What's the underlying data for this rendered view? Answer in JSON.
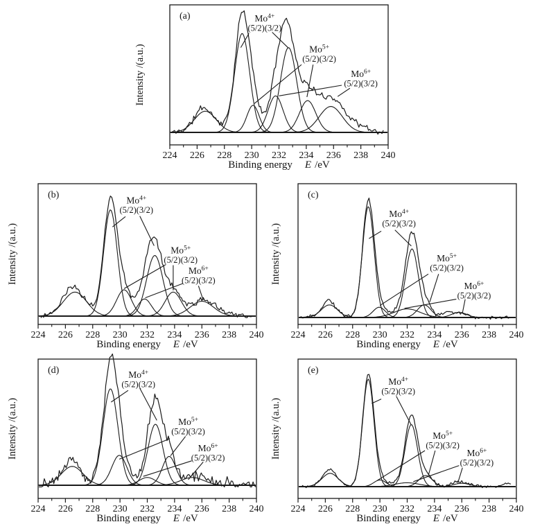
{
  "figure": {
    "background": "#ffffff",
    "line_color": "#1a1a1a",
    "ylabel": "Intensity /(a.u.)",
    "xlabel": {
      "text": "Binding energy",
      "symbol": "E",
      "unit": "/eV"
    }
  },
  "chart_data": [
    {
      "id": "a",
      "panel_label": "(a)",
      "type": "line",
      "title": "Mo 3d XPS spectrum (a)",
      "xlabel": "Binding energy E /eV",
      "ylabel": "Intensity /(a.u.)",
      "xlim": [
        224,
        240
      ],
      "ylim": [
        0,
        1.1
      ],
      "x_ticks": [
        224,
        226,
        228,
        230,
        232,
        234,
        236,
        238,
        240
      ],
      "peaks": [
        {
          "assignment": "unlabeled",
          "center": 226.6,
          "height": 0.18,
          "sigma": 0.8
        },
        {
          "assignment": "Mo4+ 3d5/2",
          "center": 229.3,
          "height": 0.84,
          "sigma": 0.55
        },
        {
          "assignment": "Mo5+ 3d5/2",
          "center": 230.1,
          "height": 0.23,
          "sigma": 0.45
        },
        {
          "assignment": "Mo6+ 3d5/2",
          "center": 231.75,
          "height": 0.31,
          "sigma": 0.55
        },
        {
          "assignment": "Mo4+ 3d3/2",
          "center": 232.7,
          "height": 0.72,
          "sigma": 0.6
        },
        {
          "assignment": "Mo5+ 3d3/2",
          "center": 234.1,
          "height": 0.27,
          "sigma": 0.6
        },
        {
          "assignment": "Mo6+ 3d3/2",
          "center": 235.8,
          "height": 0.22,
          "sigma": 0.85
        }
      ],
      "experimental": {
        "seed": 11,
        "noise": 0.02,
        "x_start": 224.15,
        "x_end": 239.65,
        "extra": [
          {
            "center": 229.25,
            "height": 0.14,
            "sigma": 0.35
          },
          {
            "center": 232.35,
            "height": 0.15,
            "sigma": 0.45
          },
          {
            "center": 235.1,
            "height": 0.08,
            "sigma": 1.2
          },
          {
            "center": 226.3,
            "height": 0.04,
            "sigma": 0.35
          },
          {
            "center": 237.4,
            "height": 0.06,
            "sigma": 0.9
          }
        ]
      },
      "annotations": [
        {
          "element": "Mo",
          "charge": "4+",
          "orbitals": "(5/2)(3/2)",
          "x": 230.95,
          "y": 0.94,
          "lines": [
            [
              229.8,
              0.84,
              229.2,
              0.72
            ],
            [
              231.5,
              0.85,
              232.7,
              0.715
            ]
          ]
        },
        {
          "element": "Mo",
          "charge": "5+",
          "orbitals": "(5/2)(3/2)",
          "x": 234.95,
          "y": 0.68,
          "lines": [
            [
              233.65,
              0.575,
              230.2,
              0.245
            ],
            [
              234.5,
              0.575,
              234.05,
              0.3
            ]
          ]
        },
        {
          "element": "Mo",
          "charge": "6+",
          "orbitals": "(5/2)(3/2)",
          "x": 238.0,
          "y": 0.47,
          "lines": [
            [
              236.6,
              0.4,
              232.0,
              0.31
            ],
            [
              237.2,
              0.375,
              236.3,
              0.305
            ]
          ]
        }
      ]
    },
    {
      "id": "b",
      "panel_label": "(b)",
      "type": "line",
      "title": "Mo 3d XPS spectrum (b)",
      "xlabel": "Binding energy E /eV",
      "ylabel": "Intensity /(a.u.)",
      "xlim": [
        224,
        240
      ],
      "ylim": [
        0,
        1.1
      ],
      "x_ticks": [
        224,
        226,
        228,
        230,
        232,
        234,
        236,
        238,
        240
      ],
      "peaks": [
        {
          "assignment": "unlabeled",
          "center": 226.7,
          "height": 0.21,
          "sigma": 0.85
        },
        {
          "assignment": "Mo4+ 3d5/2",
          "center": 229.3,
          "height": 0.93,
          "sigma": 0.5
        },
        {
          "assignment": "Mo5+ 3d5/2",
          "center": 230.3,
          "height": 0.23,
          "sigma": 0.55
        },
        {
          "assignment": "Mo6+ 3d5/2",
          "center": 231.8,
          "height": 0.15,
          "sigma": 0.5
        },
        {
          "assignment": "Mo4+ 3d3/2",
          "center": 232.55,
          "height": 0.53,
          "sigma": 0.6
        },
        {
          "assignment": "Mo5+ 3d3/2",
          "center": 233.9,
          "height": 0.21,
          "sigma": 0.6
        },
        {
          "assignment": "Mo6+ 3d3/2",
          "center": 236.0,
          "height": 0.13,
          "sigma": 0.85
        }
      ],
      "experimental": {
        "seed": 23,
        "noise": 0.02,
        "x_start": 224.2,
        "x_end": 239.7,
        "extra": [
          {
            "center": 229.3,
            "height": 0.06,
            "sigma": 0.4
          },
          {
            "center": 232.45,
            "height": 0.09,
            "sigma": 0.5
          },
          {
            "center": 226.4,
            "height": 0.05,
            "sigma": 0.5
          },
          {
            "center": 237.4,
            "height": 0.03,
            "sigma": 0.9
          }
        ]
      },
      "annotations": [
        {
          "element": "Mo",
          "charge": "4+",
          "orbitals": "(5/2)(3/2)",
          "x": 231.2,
          "y": 0.985,
          "lines": [
            [
              230.4,
              0.87,
              229.45,
              0.78
            ],
            [
              231.45,
              0.875,
              232.5,
              0.615
            ]
          ]
        },
        {
          "element": "Mo",
          "charge": "5+",
          "orbitals": "(5/2)(3/2)",
          "x": 234.45,
          "y": 0.55,
          "lines": [
            [
              233.35,
              0.45,
              230.3,
              0.24
            ],
            [
              233.9,
              0.445,
              233.9,
              0.225
            ]
          ]
        },
        {
          "element": "Mo",
          "charge": "6+",
          "orbitals": "(5/2)(3/2)",
          "x": 235.75,
          "y": 0.37,
          "lines": [
            [
              234.6,
              0.285,
              231.85,
              0.16
            ],
            [
              235.75,
              0.265,
              236.1,
              0.14
            ]
          ]
        }
      ]
    },
    {
      "id": "c",
      "panel_label": "(c)",
      "type": "line",
      "title": "Mo 3d XPS spectrum (c)",
      "xlabel": "Binding energy E /eV",
      "ylabel": "Intensity /(a.u.)",
      "xlim": [
        224,
        240
      ],
      "ylim": [
        0,
        1.1
      ],
      "x_ticks": [
        224,
        226,
        228,
        230,
        232,
        234,
        236,
        238,
        240
      ],
      "peaks": [
        {
          "assignment": "unlabeled",
          "center": 226.3,
          "height": 0.11,
          "sigma": 0.6
        },
        {
          "assignment": "Mo4+ 3d5/2",
          "center": 229.15,
          "height": 0.97,
          "sigma": 0.43
        },
        {
          "assignment": "Mo5+ 3d5/2",
          "center": 229.95,
          "height": 0.09,
          "sigma": 0.45
        },
        {
          "assignment": "Mo6+ 3d5/2",
          "center": 232.0,
          "height": 0.075,
          "sigma": 0.95
        },
        {
          "assignment": "Mo4+ 3d3/2",
          "center": 232.35,
          "height": 0.6,
          "sigma": 0.47
        },
        {
          "assignment": "Mo5+ 3d3/2",
          "center": 233.25,
          "height": 0.11,
          "sigma": 0.5
        },
        {
          "assignment": "Mo6+ 3d3/2",
          "center": 235.8,
          "height": 0.045,
          "sigma": 0.55
        }
      ],
      "experimental": {
        "seed": 37,
        "noise": 0.012,
        "x_start": 224.2,
        "x_end": 239.6,
        "extra": [
          {
            "center": 226.2,
            "height": 0.05,
            "sigma": 0.25
          },
          {
            "center": 229.2,
            "height": 0.05,
            "sigma": 0.35
          },
          {
            "center": 232.3,
            "height": 0.06,
            "sigma": 0.4
          },
          {
            "center": 234.9,
            "height": 0.035,
            "sigma": 0.3
          }
        ]
      },
      "annotations": [
        {
          "element": "Mo",
          "charge": "4+",
          "orbitals": "(5/2)(3/2)",
          "x": 231.4,
          "y": 0.88,
          "lines": [
            [
              230.1,
              0.755,
              229.2,
              0.69
            ],
            [
              231.1,
              0.765,
              232.3,
              0.625
            ]
          ]
        },
        {
          "element": "Mo",
          "charge": "5+",
          "orbitals": "(5/2)(3/2)",
          "x": 234.9,
          "y": 0.49,
          "lines": [
            [
              233.55,
              0.38,
              230.0,
              0.105
            ],
            [
              234.3,
              0.38,
              233.65,
              0.135
            ]
          ]
        },
        {
          "element": "Mo",
          "charge": "6+",
          "orbitals": "(5/2)(3/2)",
          "x": 236.9,
          "y": 0.25,
          "lines": [
            [
              235.6,
              0.16,
              231.8,
              0.08
            ],
            [
              236.25,
              0.16,
              236.05,
              0.04
            ]
          ]
        }
      ]
    },
    {
      "id": "d",
      "panel_label": "(d)",
      "type": "line",
      "title": "Mo 3d XPS spectrum (d)",
      "xlabel": "Binding energy E /eV",
      "ylabel": "Intensity /(a.u.)",
      "xlim": [
        224,
        240
      ],
      "ylim": [
        0,
        1.1
      ],
      "x_ticks": [
        224,
        226,
        228,
        230,
        232,
        234,
        236,
        238,
        240
      ],
      "peaks": [
        {
          "assignment": "unlabeled",
          "center": 226.5,
          "height": 0.17,
          "sigma": 0.8
        },
        {
          "assignment": "Mo4+ 3d5/2",
          "center": 229.3,
          "height": 0.87,
          "sigma": 0.55
        },
        {
          "assignment": "Mo5+ 3d5/2",
          "center": 229.95,
          "height": 0.27,
          "sigma": 0.55
        },
        {
          "assignment": "Mo6+ 3d5/2",
          "center": 232.0,
          "height": 0.07,
          "sigma": 0.6
        },
        {
          "assignment": "Mo4+ 3d3/2",
          "center": 232.6,
          "height": 0.55,
          "sigma": 0.55
        },
        {
          "assignment": "Mo5+ 3d3/2",
          "center": 233.6,
          "height": 0.26,
          "sigma": 0.5
        },
        {
          "assignment": "Mo6+ 3d3/2",
          "center": 235.3,
          "height": 0.07,
          "sigma": 0.85
        }
      ],
      "experimental": {
        "seed": 51,
        "noise": 0.035,
        "x_start": 224.05,
        "x_end": 239.95,
        "extra": [
          {
            "center": 229.3,
            "height": 0.16,
            "sigma": 0.38
          },
          {
            "center": 232.5,
            "height": 0.16,
            "sigma": 0.45
          },
          {
            "center": 226.4,
            "height": 0.06,
            "sigma": 0.4
          },
          {
            "center": 236.8,
            "height": 0.035,
            "sigma": 1.4
          }
        ]
      },
      "annotations": [
        {
          "element": "Mo",
          "charge": "4+",
          "orbitals": "(5/2)(3/2)",
          "x": 231.35,
          "y": 0.97,
          "lines": [
            [
              230.6,
              0.855,
              229.35,
              0.75
            ],
            [
              231.45,
              0.875,
              232.7,
              0.585
            ]
          ]
        },
        {
          "element": "Mo",
          "charge": "5+",
          "orbitals": "(5/2)(3/2)",
          "x": 235.0,
          "y": 0.545,
          "lines": [
            [
              233.65,
              0.42,
              229.95,
              0.235
            ],
            [
              234.8,
              0.44,
              233.7,
              0.265
            ]
          ]
        },
        {
          "element": "Mo",
          "charge": "6+",
          "orbitals": "(5/2)(3/2)",
          "x": 236.45,
          "y": 0.305,
          "lines": [
            [
              235.25,
              0.22,
              231.7,
              0.08
            ],
            [
              236.1,
              0.21,
              235.0,
              0.05
            ]
          ]
        }
      ]
    },
    {
      "id": "e",
      "panel_label": "(e)",
      "type": "line",
      "title": "Mo 3d XPS spectrum (e)",
      "xlabel": "Binding energy E /eV",
      "ylabel": "Intensity /(a.u.)",
      "xlim": [
        224,
        240
      ],
      "ylim": [
        0,
        1.1
      ],
      "x_ticks": [
        224,
        226,
        228,
        230,
        232,
        234,
        236,
        238,
        240
      ],
      "peaks": [
        {
          "assignment": "unlabeled",
          "center": 226.35,
          "height": 0.12,
          "sigma": 0.6
        },
        {
          "assignment": "Mo4+ 3d5/2",
          "center": 229.15,
          "height": 0.97,
          "sigma": 0.42
        },
        {
          "assignment": "Mo5+ 3d5/2",
          "center": 230.0,
          "height": 0.06,
          "sigma": 0.45
        },
        {
          "assignment": "Mo6+ 3d5/2",
          "center": 232.0,
          "height": 0.035,
          "sigma": 0.9
        },
        {
          "assignment": "Mo4+ 3d3/2",
          "center": 232.3,
          "height": 0.56,
          "sigma": 0.46
        },
        {
          "assignment": "Mo5+ 3d3/2",
          "center": 233.35,
          "height": 0.1,
          "sigma": 0.5
        },
        {
          "assignment": "Mo6+ 3d3/2",
          "center": 236.0,
          "height": 0.03,
          "sigma": 0.6
        }
      ],
      "experimental": {
        "seed": 73,
        "noise": 0.01,
        "x_start": 224.3,
        "x_end": 239.65,
        "extra": [
          {
            "center": 226.3,
            "height": 0.035,
            "sigma": 0.3
          },
          {
            "center": 229.15,
            "height": 0.03,
            "sigma": 0.3
          },
          {
            "center": 232.3,
            "height": 0.045,
            "sigma": 0.35
          },
          {
            "center": 239.25,
            "height": 0.035,
            "sigma": 0.22
          },
          {
            "center": 235.7,
            "height": 0.02,
            "sigma": 0.4
          }
        ]
      },
      "annotations": [
        {
          "element": "Mo",
          "charge": "4+",
          "orbitals": "(5/2)(3/2)",
          "x": 231.35,
          "y": 0.92,
          "lines": [
            [
              230.1,
              0.79,
              229.4,
              0.75
            ],
            [
              231.2,
              0.815,
              232.28,
              0.56
            ]
          ]
        },
        {
          "element": "Mo",
          "charge": "5+",
          "orbitals": "(5/2)(3/2)",
          "x": 234.6,
          "y": 0.43,
          "lines": [
            [
              233.3,
              0.325,
              229.8,
              0.055
            ],
            [
              234.05,
              0.325,
              233.55,
              0.1
            ]
          ]
        },
        {
          "element": "Mo",
          "charge": "6+",
          "orbitals": "(5/2)(3/2)",
          "x": 237.1,
          "y": 0.275,
          "lines": [
            [
              235.8,
              0.19,
              232.45,
              0.045
            ],
            [
              236.05,
              0.17,
              235.7,
              0.03
            ]
          ]
        }
      ]
    }
  ]
}
